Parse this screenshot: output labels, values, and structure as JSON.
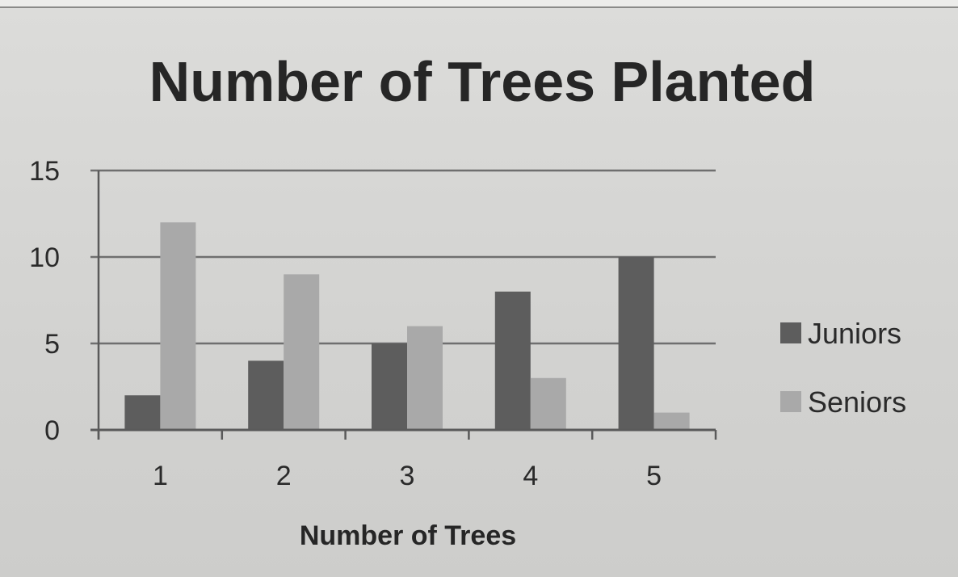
{
  "chart_data": {
    "type": "bar",
    "title": "Number of Trees Planted",
    "xlabel": "Number of Trees",
    "ylabel": "",
    "categories": [
      "1",
      "2",
      "3",
      "4",
      "5"
    ],
    "series": [
      {
        "name": "Juniors",
        "values": [
          2,
          4,
          5,
          8,
          10
        ],
        "color": "#5d5d5d"
      },
      {
        "name": "Seniors",
        "values": [
          12,
          9,
          6,
          3,
          1
        ],
        "color": "#a9a9a9"
      }
    ],
    "ylim": [
      0,
      15
    ],
    "yticks": [
      "0",
      "5",
      "10",
      "15"
    ],
    "grid": true,
    "legend": "right"
  }
}
